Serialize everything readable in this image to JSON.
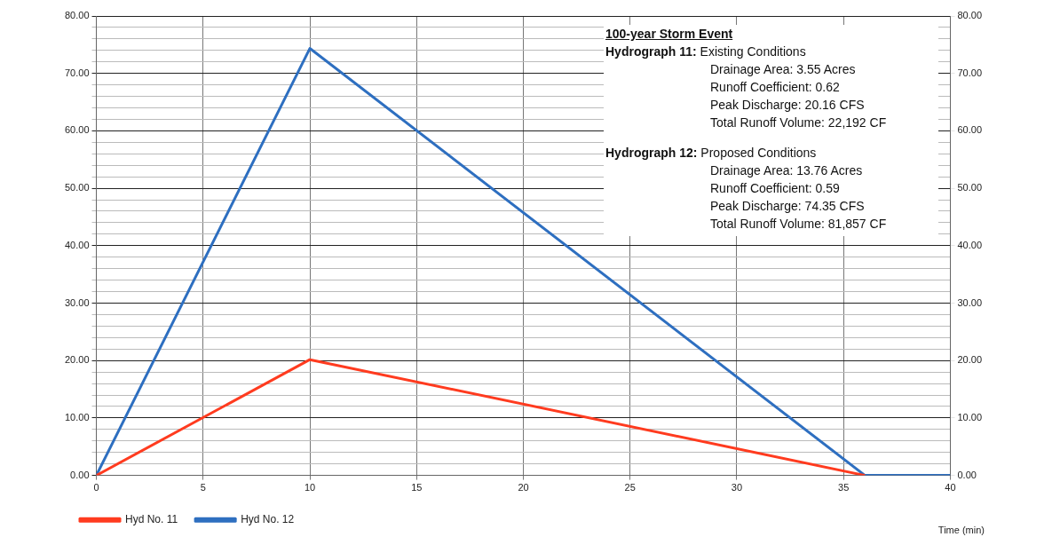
{
  "chart_data": {
    "type": "line",
    "xlabel": "Time (min)",
    "xlim": [
      0,
      40
    ],
    "xticks": [
      0,
      5,
      10,
      15,
      20,
      25,
      30,
      35,
      40
    ],
    "ylim": [
      0,
      80
    ],
    "yticks": [
      {
        "value": 0,
        "label": "0.00"
      },
      {
        "value": 2,
        "label": null
      },
      {
        "value": 4,
        "label": null
      },
      {
        "value": 6,
        "label": null
      },
      {
        "value": 8,
        "label": null
      },
      {
        "value": 10,
        "label": "10.00"
      },
      {
        "value": 12,
        "label": null
      },
      {
        "value": 14,
        "label": null
      },
      {
        "value": 16,
        "label": null
      },
      {
        "value": 18,
        "label": null
      },
      {
        "value": 20,
        "label": "20.00"
      },
      {
        "value": 22,
        "label": null
      },
      {
        "value": 24,
        "label": null
      },
      {
        "value": 26,
        "label": null
      },
      {
        "value": 28,
        "label": null
      },
      {
        "value": 30,
        "label": "30.00"
      },
      {
        "value": 32,
        "label": null
      },
      {
        "value": 34,
        "label": null
      },
      {
        "value": 36,
        "label": null
      },
      {
        "value": 38,
        "label": null
      },
      {
        "value": 40,
        "label": "40.00"
      },
      {
        "value": 42,
        "label": null
      },
      {
        "value": 44,
        "label": null
      },
      {
        "value": 46,
        "label": null
      },
      {
        "value": 48,
        "label": null
      },
      {
        "value": 50,
        "label": "50.00"
      },
      {
        "value": 52,
        "label": null
      },
      {
        "value": 54,
        "label": null
      },
      {
        "value": 56,
        "label": null
      },
      {
        "value": 58,
        "label": null
      },
      {
        "value": 60,
        "label": "60.00"
      },
      {
        "value": 62,
        "label": null
      },
      {
        "value": 64,
        "label": null
      },
      {
        "value": 66,
        "label": null
      },
      {
        "value": 68,
        "label": null
      },
      {
        "value": 70,
        "label": "70.00"
      },
      {
        "value": 72,
        "label": null
      },
      {
        "value": 74,
        "label": null
      },
      {
        "value": 76,
        "label": null
      },
      {
        "value": 78,
        "label": null
      },
      {
        "value": 80,
        "label": "80.00"
      }
    ],
    "y2lim": [
      0,
      80
    ],
    "y2ticks": [
      {
        "value": 0,
        "label": "0.00"
      },
      {
        "value": 10,
        "label": "10.00"
      },
      {
        "value": 20,
        "label": "20.00"
      },
      {
        "value": 30,
        "label": "30.00"
      },
      {
        "value": 40,
        "label": "40.00"
      },
      {
        "value": 50,
        "label": "50.00"
      },
      {
        "value": 60,
        "label": "60.00"
      },
      {
        "value": 70,
        "label": "70.00"
      },
      {
        "value": 80,
        "label": "80.00"
      }
    ],
    "grid": true,
    "legend": "bottom",
    "marker": "none",
    "line_style": "solid",
    "series": [
      {
        "name": "Hyd No. 11",
        "color": "#ff3b1f",
        "x": [
          0,
          10,
          36
        ],
        "values": [
          0,
          20.16,
          0
        ]
      },
      {
        "name": "Hyd No. 12",
        "color": "#2e6fc0",
        "x": [
          0,
          10,
          36,
          40
        ],
        "values": [
          0,
          74.35,
          0,
          0
        ]
      }
    ],
    "annotations": [
      "100-year Storm Event",
      "Hydrograph 11: Existing Conditions",
      "Drainage Area:  3.55 Acres",
      "Runoff Coefficient:  0.62",
      "Peak Discharge:  20.16 CFS",
      "Total Runoff Volume:  22,192 CF",
      "Hydrograph 12: Proposed Conditions",
      "Drainage Area:  13.76 Acres",
      "Runoff Coefficient: 0.59",
      "Peak Discharge:  74.35 CFS",
      "Total Runoff Volume:  81,857 CF"
    ]
  }
}
